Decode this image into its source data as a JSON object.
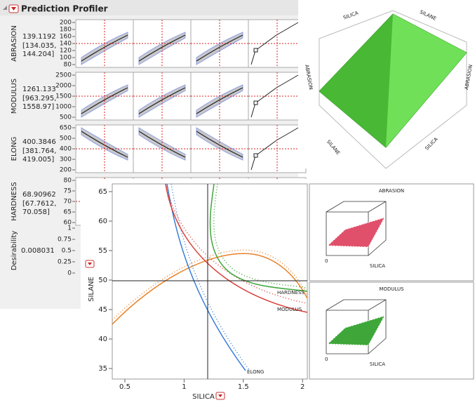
{
  "profiler": {
    "title": "Prediction Profiler",
    "rows": [
      {
        "name": "ABRASION",
        "value": "139.1192",
        "ci": [
          "[134.035,",
          "144.204]"
        ],
        "ticks": [
          "200",
          "180",
          "160",
          "140",
          "120",
          "100",
          "80"
        ]
      },
      {
        "name": "MODULUS",
        "value": "1261.133",
        "ci": [
          "[963.295,",
          "1558.97]"
        ],
        "ticks": [
          "2500",
          "2000",
          "1500",
          "1000",
          "500"
        ]
      },
      {
        "name": "ELONG",
        "value": "400.3846",
        "ci": [
          "[381.764,",
          "419.005]"
        ],
        "ticks": [
          "650",
          "500",
          "400",
          "300",
          "200"
        ]
      },
      {
        "name": "HARDNESS",
        "value": "68.90962",
        "ci": [
          "[67.7612,",
          "70.058]"
        ],
        "ticks": [
          "80",
          "75",
          "70",
          "65",
          "60"
        ]
      }
    ],
    "desirability": {
      "name": "Desirability",
      "value": "0.008031",
      "ticks": [
        "1",
        "0.75",
        "0.5",
        "0.25",
        "0"
      ]
    }
  },
  "surface": {
    "labels": [
      "SILICA",
      "SILANE",
      "ABRASION",
      "ABRASION",
      "SILANE",
      "SILICA"
    ]
  },
  "contour": {
    "x_label": "SILICA",
    "y_label": "SILANE",
    "x_ticks": [
      "0.5",
      "1",
      "1.5",
      "2"
    ],
    "y_ticks": [
      "65",
      "60",
      "55",
      "50",
      "45",
      "40",
      "35"
    ],
    "curve_labels": [
      "ELONG",
      "HARDNESS",
      "MODULUS"
    ]
  },
  "mini_plots": [
    {
      "title": "ABRASION",
      "x_label": "SILICA",
      "z_label": "0"
    },
    {
      "title": "MODULUS",
      "x_label": "SILICA",
      "z_label": "0"
    }
  ]
}
